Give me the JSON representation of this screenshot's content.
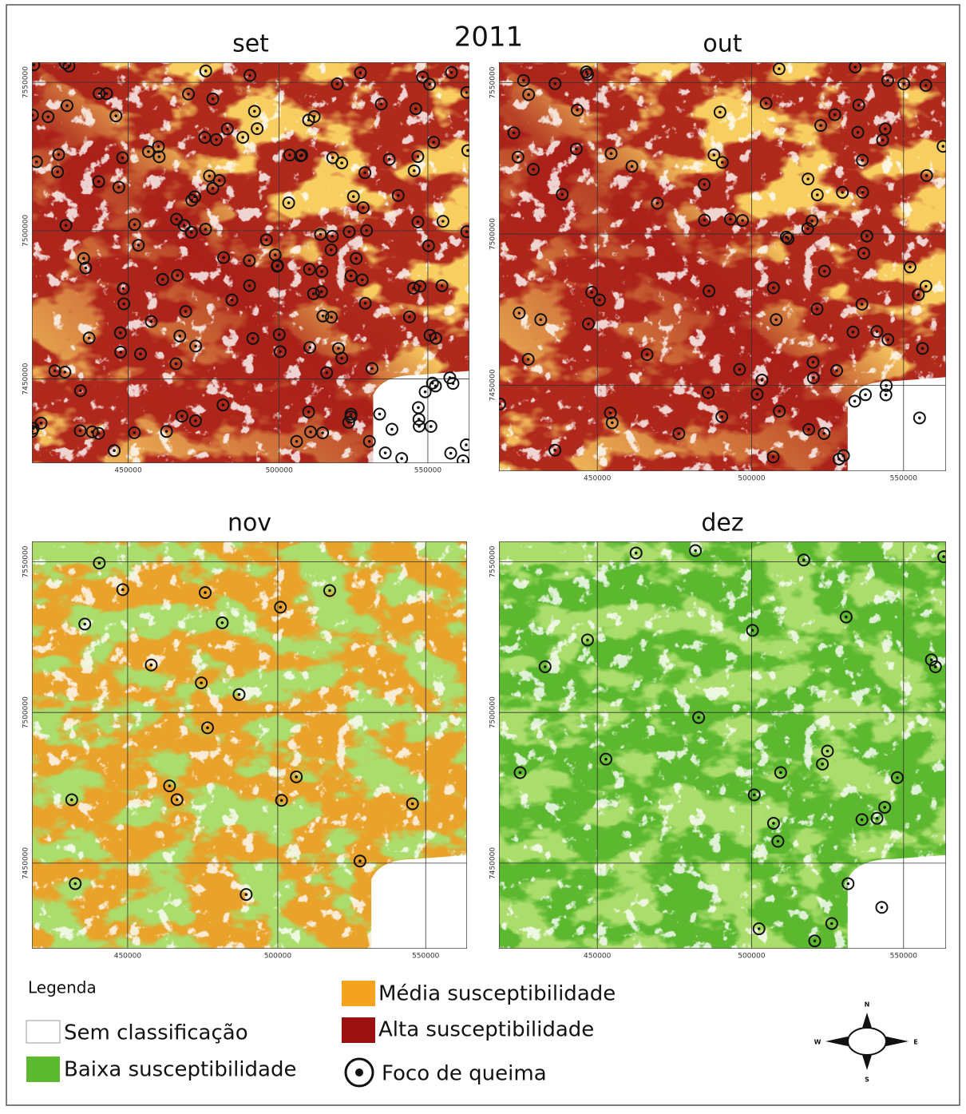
{
  "title": "2011",
  "panels": [
    {
      "title": "set"
    },
    {
      "title": "out"
    },
    {
      "title": "nov"
    },
    {
      "title": "dez"
    }
  ],
  "axes": {
    "xticks": [
      450000,
      500000,
      550000
    ],
    "yticks": [
      7550000,
      7500000,
      7450000
    ]
  },
  "legend": {
    "title": "Legenda",
    "items": [
      "Sem classificação",
      "Baixa susceptibilidade",
      "Média susceptibilidade",
      "Alta susceptibilidade",
      "Foco de queima"
    ]
  },
  "compass": {
    "north": "N",
    "south": "S",
    "east": "E",
    "west": "W"
  }
}
